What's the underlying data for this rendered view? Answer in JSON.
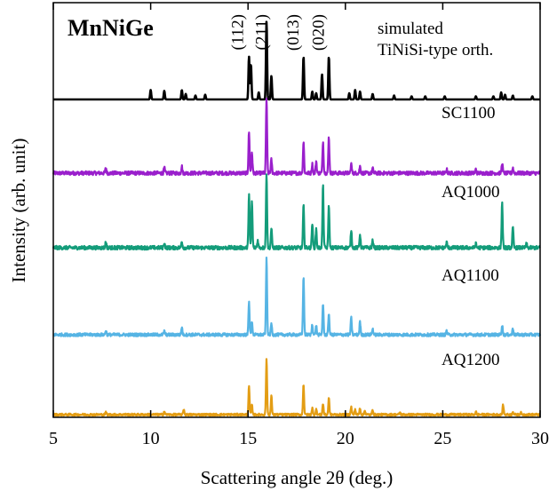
{
  "chart_data": {
    "type": "line",
    "title": "MnNiGe",
    "xlabel": "Scattering angle 2θ (deg.)",
    "ylabel": "Intensity (arb. unit)",
    "xlim": [
      5,
      30
    ],
    "x_ticks": [
      5,
      10,
      15,
      20,
      25,
      30
    ],
    "x_tick_labels": [
      "5",
      "10",
      "15",
      "20",
      "25",
      "30"
    ],
    "grid": false,
    "legend": "none",
    "annotations": {
      "simulated_line1": "simulated",
      "simulated_line2": "TiNiSi-type orth.",
      "peak_labels": [
        {
          "text": "(112)",
          "x": 15.2
        },
        {
          "text": "(211)",
          "x": 16.3
        },
        {
          "text": "(013)",
          "x": 17.9
        },
        {
          "text": "(020)",
          "x": 19.2
        }
      ]
    },
    "series": [
      {
        "name": "simulated TiNiSi-type orth.",
        "color": "#000000",
        "noise": 0,
        "peaks": [
          [
            10.0,
            0.12
          ],
          [
            10.7,
            0.11
          ],
          [
            11.6,
            0.12
          ],
          [
            11.8,
            0.07
          ],
          [
            12.3,
            0.05
          ],
          [
            12.8,
            0.06
          ],
          [
            15.05,
            0.55
          ],
          [
            15.15,
            0.45
          ],
          [
            15.55,
            0.09
          ],
          [
            15.95,
            1.0
          ],
          [
            16.2,
            0.3
          ],
          [
            17.85,
            0.55
          ],
          [
            18.3,
            0.1
          ],
          [
            18.5,
            0.08
          ],
          [
            18.8,
            0.32
          ],
          [
            19.15,
            0.55
          ],
          [
            20.2,
            0.08
          ],
          [
            20.5,
            0.12
          ],
          [
            20.75,
            0.1
          ],
          [
            21.4,
            0.07
          ],
          [
            22.5,
            0.05
          ],
          [
            23.4,
            0.04
          ],
          [
            24.1,
            0.04
          ],
          [
            25.1,
            0.04
          ],
          [
            26.7,
            0.04
          ],
          [
            27.6,
            0.04
          ],
          [
            28.0,
            0.09
          ],
          [
            28.2,
            0.06
          ],
          [
            28.6,
            0.05
          ],
          [
            29.6,
            0.04
          ]
        ]
      },
      {
        "name": "SC1100",
        "color": "#9a1fcc",
        "noise": 0.025,
        "peaks": [
          [
            7.7,
            0.07
          ],
          [
            10.7,
            0.07
          ],
          [
            11.6,
            0.09
          ],
          [
            15.05,
            0.55
          ],
          [
            15.2,
            0.28
          ],
          [
            15.95,
            1.0
          ],
          [
            16.2,
            0.18
          ],
          [
            17.85,
            0.42
          ],
          [
            18.3,
            0.12
          ],
          [
            18.5,
            0.16
          ],
          [
            18.85,
            0.42
          ],
          [
            19.15,
            0.48
          ],
          [
            20.3,
            0.12
          ],
          [
            20.75,
            0.09
          ],
          [
            21.4,
            0.06
          ],
          [
            25.2,
            0.05
          ],
          [
            26.7,
            0.05
          ],
          [
            28.05,
            0.14
          ],
          [
            28.6,
            0.07
          ]
        ]
      },
      {
        "name": "AQ1000",
        "color": "#139c7a",
        "noise": 0.025,
        "peaks": [
          [
            7.7,
            0.08
          ],
          [
            10.7,
            0.07
          ],
          [
            11.6,
            0.09
          ],
          [
            15.05,
            0.72
          ],
          [
            15.2,
            0.62
          ],
          [
            15.5,
            0.1
          ],
          [
            15.95,
            1.0
          ],
          [
            16.2,
            0.26
          ],
          [
            17.85,
            0.57
          ],
          [
            18.3,
            0.33
          ],
          [
            18.5,
            0.25
          ],
          [
            18.85,
            0.83
          ],
          [
            19.15,
            0.58
          ],
          [
            20.3,
            0.24
          ],
          [
            20.75,
            0.18
          ],
          [
            21.4,
            0.1
          ],
          [
            25.2,
            0.07
          ],
          [
            26.7,
            0.05
          ],
          [
            28.05,
            0.6
          ],
          [
            28.6,
            0.27
          ],
          [
            29.3,
            0.05
          ]
        ]
      },
      {
        "name": "AQ1100",
        "color": "#56b4e4",
        "noise": 0.02,
        "peaks": [
          [
            7.7,
            0.06
          ],
          [
            10.7,
            0.05
          ],
          [
            11.6,
            0.1
          ],
          [
            15.05,
            0.44
          ],
          [
            15.2,
            0.18
          ],
          [
            15.95,
            1.0
          ],
          [
            16.2,
            0.15
          ],
          [
            17.85,
            0.78
          ],
          [
            18.3,
            0.14
          ],
          [
            18.5,
            0.12
          ],
          [
            18.85,
            0.41
          ],
          [
            19.15,
            0.28
          ],
          [
            20.3,
            0.22
          ],
          [
            20.75,
            0.17
          ],
          [
            21.4,
            0.08
          ],
          [
            25.2,
            0.05
          ],
          [
            28.05,
            0.13
          ],
          [
            28.6,
            0.08
          ]
        ]
      },
      {
        "name": "AQ1200",
        "color": "#e39d14",
        "noise": 0.02,
        "peaks": [
          [
            7.7,
            0.04
          ],
          [
            10.7,
            0.06
          ],
          [
            11.7,
            0.1
          ],
          [
            15.05,
            0.51
          ],
          [
            15.2,
            0.17
          ],
          [
            15.95,
            1.0
          ],
          [
            16.2,
            0.34
          ],
          [
            17.85,
            0.56
          ],
          [
            18.3,
            0.12
          ],
          [
            18.5,
            0.1
          ],
          [
            18.85,
            0.2
          ],
          [
            19.15,
            0.3
          ],
          [
            20.3,
            0.14
          ],
          [
            20.5,
            0.1
          ],
          [
            20.75,
            0.12
          ],
          [
            21.0,
            0.08
          ],
          [
            21.4,
            0.09
          ],
          [
            22.8,
            0.04
          ],
          [
            26.7,
            0.05
          ],
          [
            28.1,
            0.18
          ],
          [
            28.6,
            0.06
          ],
          [
            29.0,
            0.04
          ]
        ]
      }
    ]
  }
}
